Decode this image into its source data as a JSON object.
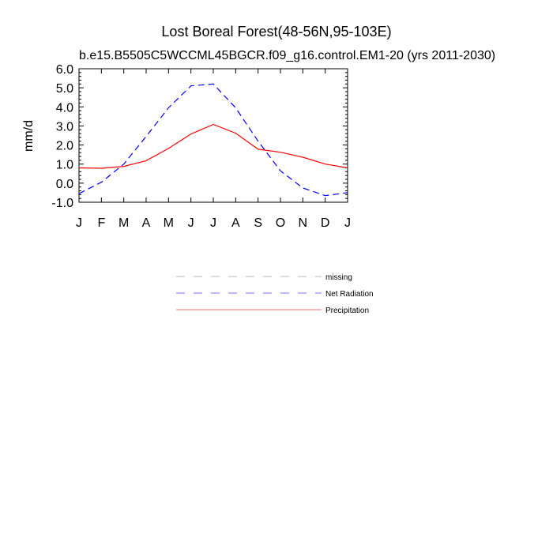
{
  "chart_data": {
    "type": "line",
    "title": "Lost Boreal Forest(48-56N,95-103E)",
    "subtitle": "b.e15.B5505C5WCCML45BGCR.f09_g16.control.EM1-20 (yrs 2011-2030)",
    "xlabel": "",
    "ylabel": "mm/d",
    "categories": [
      "J",
      "F",
      "M",
      "A",
      "M",
      "J",
      "J",
      "A",
      "S",
      "O",
      "N",
      "D",
      "J"
    ],
    "ylim": [
      -1.0,
      6.0
    ],
    "yticks": [
      "-1.0",
      "0.0",
      "1.0",
      "2.0",
      "3.0",
      "4.0",
      "5.0",
      "6.0"
    ],
    "grid": false,
    "legend_placement": "below",
    "series": [
      {
        "name": "Net Radiation",
        "color": "#0000ff",
        "style": "dashed",
        "values": [
          -0.55,
          0.05,
          1.0,
          2.45,
          3.95,
          5.1,
          5.2,
          3.95,
          2.2,
          0.65,
          -0.25,
          -0.65,
          -0.5
        ]
      },
      {
        "name": "Precipitation",
        "color": "#ff0000",
        "style": "solid",
        "values": [
          0.8,
          0.78,
          0.88,
          1.18,
          1.82,
          2.58,
          3.08,
          2.62,
          1.78,
          1.62,
          1.36,
          1.0,
          0.8
        ]
      }
    ],
    "legend": [
      {
        "label": "missing",
        "color": "#808080",
        "style": "dashed"
      },
      {
        "label": "Net Radiation",
        "color": "#0000ff",
        "style": "dashed"
      },
      {
        "label": "Precipitation",
        "color": "#ff0000",
        "style": "solid"
      }
    ]
  }
}
